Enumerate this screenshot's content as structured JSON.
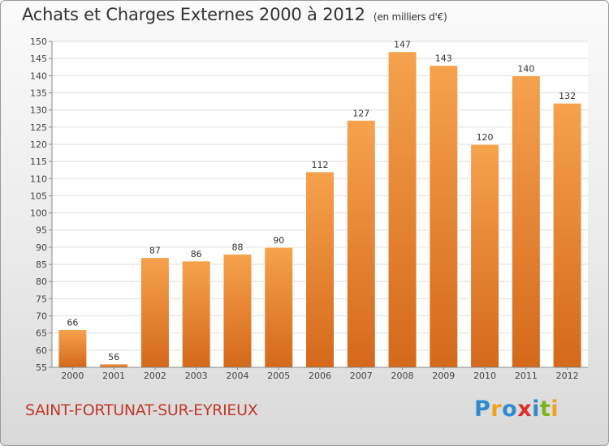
{
  "chart_data": {
    "type": "bar",
    "title": "Achats et Charges Externes 2000 à 2012",
    "subtitle": "(en milliers d'€)",
    "categories": [
      "2000",
      "2001",
      "2002",
      "2003",
      "2004",
      "2005",
      "2006",
      "2007",
      "2008",
      "2009",
      "2010",
      "2011",
      "2012"
    ],
    "values": [
      66,
      56,
      87,
      86,
      88,
      90,
      112,
      127,
      147,
      143,
      120,
      140,
      132
    ],
    "ylim": [
      55,
      150
    ],
    "yticks": [
      55,
      60,
      65,
      70,
      75,
      80,
      85,
      90,
      95,
      100,
      105,
      110,
      115,
      120,
      125,
      130,
      135,
      140,
      145,
      150
    ],
    "grid": true,
    "bar_color_top": "#f6a24d",
    "bar_color_bottom": "#d4691a"
  },
  "footer": {
    "commune": "SAINT-FORTUNAT-SUR-EYRIEUX",
    "logo_text": "Proxiti",
    "logo_colors": [
      "#2f8ad0",
      "#f0a21c",
      "#2f8ad0",
      "#d9312a",
      "#2f8ad0",
      "#7ab51d",
      "#f0a21c"
    ]
  }
}
